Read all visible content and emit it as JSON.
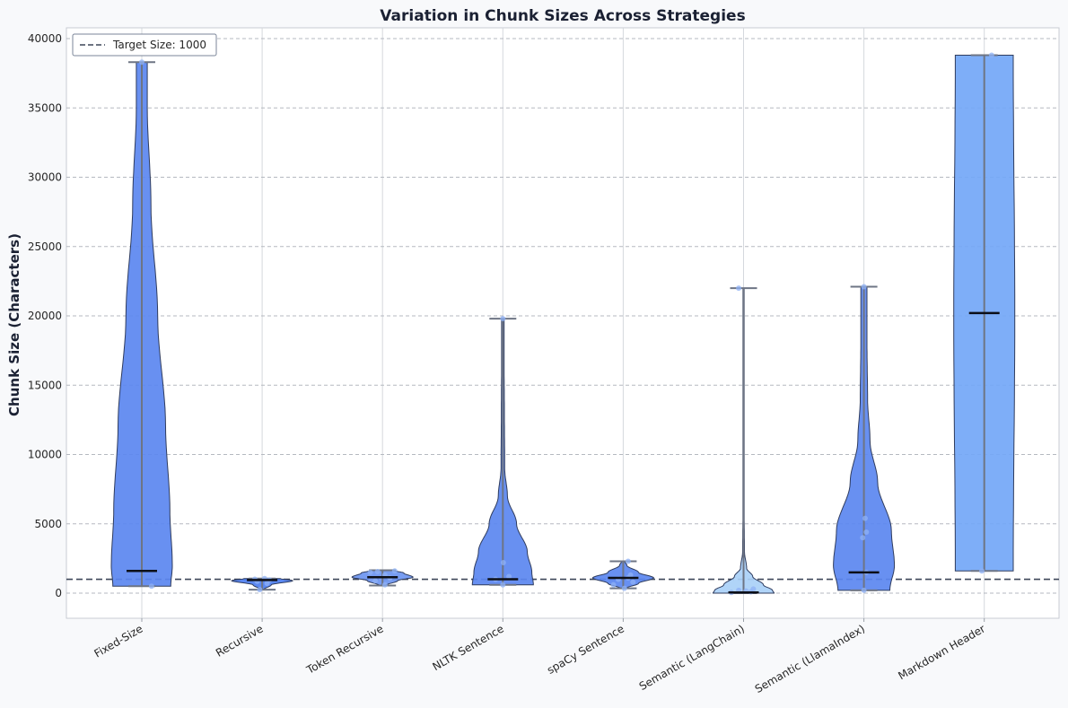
{
  "chart_data": {
    "type": "violin",
    "title": "Variation in Chunk Sizes Across Strategies",
    "xlabel": "",
    "ylabel": "Chunk Size (Characters)",
    "ylim": [
      -1800,
      40600
    ],
    "yticks": [
      0,
      5000,
      10000,
      15000,
      20000,
      25000,
      30000,
      35000,
      40000
    ],
    "grid": true,
    "legend": {
      "position": "top-left",
      "entries": [
        "Target Size: 1000"
      ]
    },
    "reference_line": {
      "label": "Target Size: 1000",
      "value": 1000,
      "style": "dashed"
    },
    "categories": [
      "Fixed-Size",
      "Recursive",
      "Token Recursive",
      "NLTK Sentence",
      "spaCy Sentence",
      "Semantic (LangChain)",
      "Semantic (LlamaIndex)",
      "Markdown Header"
    ],
    "violins": [
      {
        "category": "Fixed-Size",
        "min": 500,
        "max": 38300,
        "median": 1600,
        "color": "#5b87f0",
        "profile": [
          [
            500,
            0.95
          ],
          [
            2000,
            1.0
          ],
          [
            6000,
            0.92
          ],
          [
            12000,
            0.78
          ],
          [
            20000,
            0.52
          ],
          [
            28000,
            0.3
          ],
          [
            35000,
            0.18
          ],
          [
            38300,
            0.18
          ]
        ],
        "points": [
          [
            500,
            0.4
          ],
          [
            38300,
            0
          ]
        ]
      },
      {
        "category": "Recursive",
        "min": 250,
        "max": 1050,
        "median": 950,
        "color": "#4d7ef0",
        "profile": [
          [
            250,
            0.05
          ],
          [
            600,
            0.3
          ],
          [
            900,
            1.0
          ],
          [
            1050,
            0.6
          ]
        ],
        "points": [
          [
            250,
            -0.1
          ],
          [
            700,
            0.2
          ],
          [
            850,
            -0.2
          ],
          [
            950,
            0.3
          ],
          [
            1000,
            -0.3
          ],
          [
            1050,
            0.1
          ]
        ]
      },
      {
        "category": "Token Recursive",
        "min": 550,
        "max": 1650,
        "median": 1150,
        "color": "#6c95f0",
        "profile": [
          [
            550,
            0.1
          ],
          [
            900,
            0.5
          ],
          [
            1150,
            1.0
          ],
          [
            1450,
            0.7
          ],
          [
            1650,
            0.35
          ]
        ],
        "points": [
          [
            600,
            0.1
          ],
          [
            900,
            -0.3
          ],
          [
            1100,
            0.3
          ],
          [
            1300,
            0.1
          ],
          [
            1500,
            -0.5
          ],
          [
            1600,
            0.5
          ],
          [
            1550,
            -0.2
          ]
        ]
      },
      {
        "category": "NLTK Sentence",
        "min": 600,
        "max": 19800,
        "median": 1000,
        "color": "#5b87f0",
        "profile": [
          [
            600,
            1.0
          ],
          [
            1500,
            0.95
          ],
          [
            3000,
            0.8
          ],
          [
            5000,
            0.45
          ],
          [
            7000,
            0.15
          ],
          [
            9000,
            0.06
          ],
          [
            13000,
            0.05
          ],
          [
            17000,
            0.04
          ],
          [
            19800,
            0.04
          ]
        ],
        "points": [
          [
            600,
            0
          ],
          [
            1000,
            -0.3
          ],
          [
            1200,
            0.25
          ],
          [
            2200,
            0.02
          ],
          [
            19800,
            0
          ]
        ]
      },
      {
        "category": "spaCy Sentence",
        "min": 350,
        "max": 2300,
        "median": 1100,
        "color": "#5b87f0",
        "profile": [
          [
            350,
            0.1
          ],
          [
            700,
            0.5
          ],
          [
            1100,
            1.0
          ],
          [
            1500,
            0.5
          ],
          [
            2000,
            0.12
          ],
          [
            2300,
            0.05
          ]
        ],
        "points": [
          [
            350,
            0.05
          ],
          [
            600,
            -0.4
          ],
          [
            800,
            0.4
          ],
          [
            1000,
            -0.2
          ],
          [
            1100,
            0.2
          ],
          [
            1300,
            0.3
          ],
          [
            2300,
            0.2
          ]
        ]
      },
      {
        "category": "Semantic (LangChain)",
        "min": 0,
        "max": 22000,
        "median": 50,
        "color": "#a9d0f7",
        "profile": [
          [
            0,
            1.0
          ],
          [
            200,
            0.95
          ],
          [
            600,
            0.65
          ],
          [
            1200,
            0.3
          ],
          [
            1800,
            0.1
          ],
          [
            3000,
            0.03
          ],
          [
            6000,
            0.02
          ],
          [
            22000,
            0.02
          ]
        ],
        "points": [
          [
            50,
            -0.5
          ],
          [
            100,
            0.3
          ],
          [
            200,
            -0.2
          ],
          [
            300,
            0.4
          ],
          [
            150,
            0.1
          ],
          [
            22000,
            -0.2
          ]
        ]
      },
      {
        "category": "Semantic (LlamaIndex)",
        "min": 200,
        "max": 22100,
        "median": 1500,
        "color": "#5b87f0",
        "profile": [
          [
            200,
            0.85
          ],
          [
            2000,
            1.0
          ],
          [
            4500,
            0.9
          ],
          [
            8000,
            0.45
          ],
          [
            11000,
            0.2
          ],
          [
            14000,
            0.12
          ],
          [
            18000,
            0.1
          ],
          [
            22100,
            0.1
          ]
        ],
        "points": [
          [
            200,
            0
          ],
          [
            1500,
            0.1
          ],
          [
            4000,
            -0.05
          ],
          [
            4400,
            0.1
          ],
          [
            5400,
            0.05
          ],
          [
            22100,
            0
          ]
        ]
      },
      {
        "category": "Markdown Header",
        "min": 1600,
        "max": 38800,
        "median": 20200,
        "color": "#73a7f7",
        "profile": [
          [
            1600,
            0.95
          ],
          [
            20000,
            1.0
          ],
          [
            38800,
            0.95
          ]
        ],
        "points": [
          [
            1600,
            -0.1
          ],
          [
            38800,
            0.3
          ]
        ]
      }
    ]
  }
}
